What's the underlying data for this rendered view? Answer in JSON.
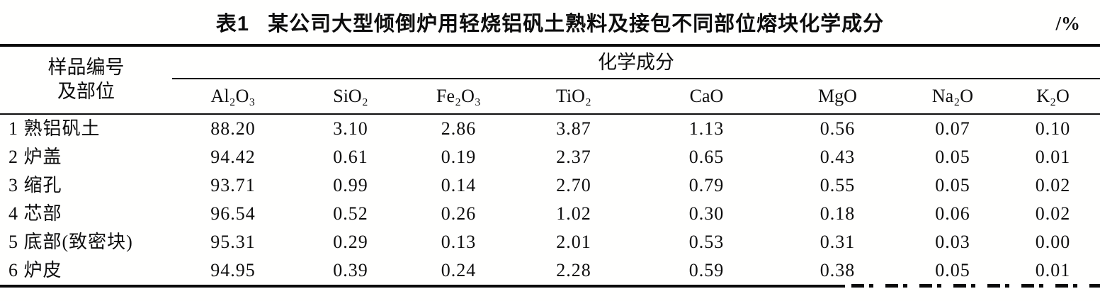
{
  "table": {
    "caption_label": "表1",
    "caption_text": "某公司大型倾倒炉用轻烧铝矾土熟料及接包不同部位熔块化学成分",
    "unit": "/%",
    "row_header": {
      "line1": "样品编号",
      "line2": "及部位"
    },
    "group_header": "化学成分",
    "columns": [
      "Al₂O₃",
      "SiO₂",
      "Fe₂O₃",
      "TiO₂",
      "CaO",
      "MgO",
      "Na₂O",
      "K₂O"
    ],
    "rows": [
      {
        "label": "1 熟铝矾土",
        "values": [
          "88.20",
          "3.10",
          "2.86",
          "3.87",
          "1.13",
          "0.56",
          "0.07",
          "0.10"
        ]
      },
      {
        "label": "2 炉盖",
        "values": [
          "94.42",
          "0.61",
          "0.19",
          "2.37",
          "0.65",
          "0.43",
          "0.05",
          "0.01"
        ]
      },
      {
        "label": "3 缩孔",
        "values": [
          "93.71",
          "0.99",
          "0.14",
          "2.70",
          "0.79",
          "0.55",
          "0.05",
          "0.02"
        ]
      },
      {
        "label": "4 芯部",
        "values": [
          "96.54",
          "0.52",
          "0.26",
          "1.02",
          "0.30",
          "0.18",
          "0.06",
          "0.02"
        ]
      },
      {
        "label": "5 底部(致密块)",
        "values": [
          "95.31",
          "0.29",
          "0.13",
          "2.01",
          "0.53",
          "0.31",
          "0.03",
          "0.00"
        ]
      },
      {
        "label": "6 炉皮",
        "values": [
          "94.95",
          "0.39",
          "0.24",
          "2.28",
          "0.59",
          "0.38",
          "0.05",
          "0.01"
        ]
      }
    ]
  }
}
